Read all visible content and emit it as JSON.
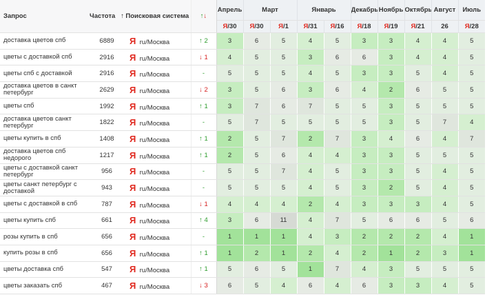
{
  "header": {
    "query": "Запрос",
    "frequency": "Частота",
    "sort_icon": "↑",
    "engine": "Поисковая система",
    "change_up": "↑",
    "change_down": "↓",
    "months": [
      "Апрель",
      "Март",
      null,
      "Январь",
      null,
      "Декабрь",
      "Ноябрь",
      "Октябрь",
      "Август",
      "Июль"
    ],
    "dates": [
      {
        "logo": "Я",
        "day": "/30"
      },
      {
        "logo": "Я",
        "day": "/30"
      },
      {
        "logo": "Я",
        "day": "/1"
      },
      {
        "logo": "Я",
        "day": "/31"
      },
      {
        "logo": "Я",
        "day": "/16"
      },
      {
        "logo": "Я",
        "day": "/18"
      },
      {
        "logo": "Я",
        "day": "/19"
      },
      {
        "logo": "Я",
        "day": "/21"
      },
      {
        "logo": null,
        "day": "26"
      },
      {
        "logo": "Я",
        "day": "/28"
      }
    ]
  },
  "table": {
    "rows": [
      {
        "query": "доставка цветов спб",
        "frequency": 6889,
        "logo": "Я",
        "region": "ru/Москва",
        "change": "↑ 2",
        "values": [
          3,
          6,
          5,
          4,
          5,
          3,
          3,
          4,
          4,
          5
        ]
      },
      {
        "query": "цветы с доставкой спб",
        "frequency": 2916,
        "logo": "Я",
        "region": "ru/Москва",
        "change": "↓ 1",
        "values": [
          4,
          5,
          5,
          3,
          6,
          6,
          3,
          4,
          4,
          5
        ]
      },
      {
        "query": "цветы спб с доставкой",
        "frequency": 2916,
        "logo": "Я",
        "region": "ru/Москва",
        "change": "-",
        "values": [
          5,
          5,
          5,
          4,
          5,
          3,
          3,
          5,
          4,
          5
        ]
      },
      {
        "query": "доставка цветов в санкт петербург",
        "frequency": 2629,
        "logo": "Я",
        "region": "ru/Москва",
        "change": "↓ 2",
        "values": [
          3,
          5,
          6,
          3,
          6,
          4,
          2,
          6,
          5,
          5
        ]
      },
      {
        "query": "цветы спб",
        "frequency": 1992,
        "logo": "Я",
        "region": "ru/Москва",
        "change": "↑ 1",
        "values": [
          3,
          7,
          6,
          7,
          5,
          5,
          3,
          5,
          5,
          5
        ]
      },
      {
        "query": "доставка цветов санкт петербург",
        "frequency": 1822,
        "logo": "Я",
        "region": "ru/Москва",
        "change": "-",
        "values": [
          5,
          7,
          5,
          5,
          5,
          5,
          3,
          5,
          7,
          4
        ]
      },
      {
        "query": "цветы купить в спб",
        "frequency": 1408,
        "logo": "Я",
        "region": "ru/Москва",
        "change": "↑ 1",
        "values": [
          2,
          5,
          7,
          2,
          7,
          3,
          4,
          6,
          4,
          7
        ]
      },
      {
        "query": "доставка цветов спб недорого",
        "frequency": 1217,
        "logo": "Я",
        "region": "ru/Москва",
        "change": "↑ 1",
        "values": [
          2,
          5,
          6,
          4,
          4,
          3,
          3,
          5,
          5,
          5
        ]
      },
      {
        "query": "цветы с доставкой санкт петербург",
        "frequency": 956,
        "logo": "Я",
        "region": "ru/Москва",
        "change": "-",
        "values": [
          5,
          5,
          7,
          4,
          5,
          3,
          3,
          5,
          4,
          5
        ]
      },
      {
        "query": "цветы санкт петербург с доставкой",
        "frequency": 943,
        "logo": "Я",
        "region": "ru/Москва",
        "change": "-",
        "values": [
          5,
          5,
          5,
          4,
          5,
          3,
          2,
          5,
          4,
          5
        ]
      },
      {
        "query": "цветы с доставкой в спб",
        "frequency": 787,
        "logo": "Я",
        "region": "ru/Москва",
        "change": "↓ 1",
        "values": [
          4,
          4,
          4,
          2,
          4,
          3,
          3,
          3,
          4,
          5
        ]
      },
      {
        "query": "цветы купить спб",
        "frequency": 661,
        "logo": "Я",
        "region": "ru/Москва",
        "change": "↑ 4",
        "values": [
          3,
          6,
          11,
          4,
          7,
          5,
          6,
          6,
          5,
          6
        ]
      },
      {
        "query": "розы купить в спб",
        "frequency": 656,
        "logo": "Я",
        "region": "ru/Москва",
        "change": "-",
        "values": [
          1,
          1,
          1,
          4,
          3,
          2,
          2,
          2,
          4,
          1
        ]
      },
      {
        "query": "купить розы в спб",
        "frequency": 656,
        "logo": "Я",
        "region": "ru/Москва",
        "change": "↑ 1",
        "values": [
          1,
          2,
          1,
          2,
          4,
          2,
          1,
          2,
          3,
          1
        ]
      },
      {
        "query": "цветы доставка спб",
        "frequency": 547,
        "logo": "Я",
        "region": "ru/Москва",
        "change": "↑ 1",
        "values": [
          5,
          6,
          5,
          1,
          7,
          4,
          3,
          5,
          5,
          5
        ]
      },
      {
        "query": "цветы заказать спб",
        "frequency": 467,
        "logo": "Я",
        "region": "ru/Москва",
        "change": "↓ 3",
        "values": [
          6,
          5,
          4,
          6,
          4,
          6,
          3,
          3,
          4,
          5
        ]
      }
    ]
  }
}
